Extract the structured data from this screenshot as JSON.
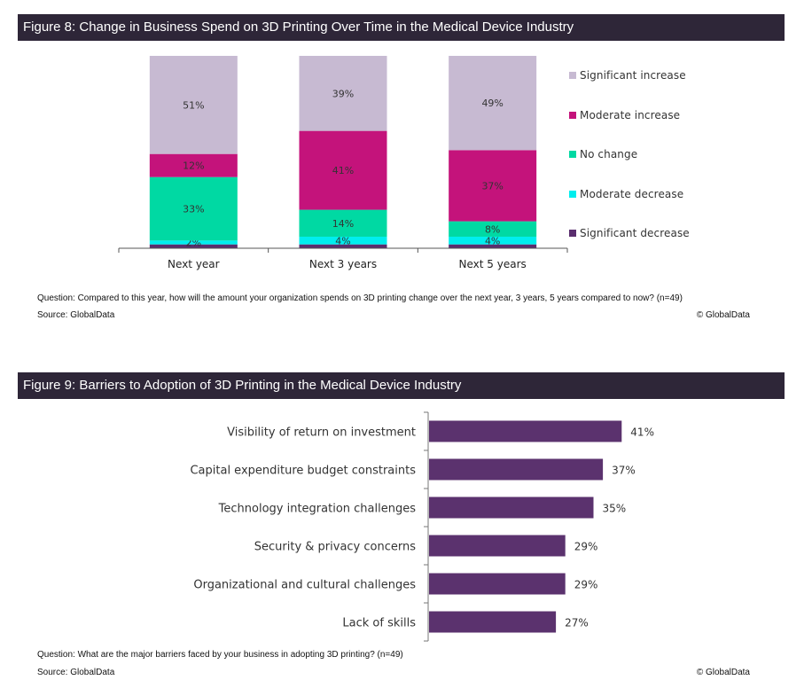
{
  "figure8": {
    "title": "Figure 8: Change in Business Spend on 3D Printing Over Time in the Medical Device Industry",
    "question": "Question: Compared to this year, how will the amount your organization spends on 3D printing change over the next year, 3 years, 5 years compared to now?  (n=49)",
    "source": "Source: GlobalData",
    "copyright": "© GlobalData"
  },
  "figure9": {
    "title": "Figure 9: Barriers to Adoption of 3D Printing in the Medical Device Industry",
    "question": "Question: What are the major barriers faced by your business in adopting 3D printing? (n=49)",
    "source": "Source: GlobalData",
    "copyright": "© GlobalData"
  },
  "chart_data": [
    {
      "type": "bar",
      "stacked": true,
      "orientation": "vertical",
      "title": "Figure 8: Change in Business Spend on 3D Printing Over Time in the Medical Device Industry",
      "xlabel": "",
      "ylabel": "",
      "ylim": [
        0,
        100
      ],
      "grid": false,
      "legend_position": "right",
      "categories": [
        "Next year",
        "Next 3 years",
        "Next 5 years"
      ],
      "series": [
        {
          "name": "Significant decrease",
          "color": "#5a2d6e",
          "values": [
            2,
            2,
            2
          ],
          "labels": [
            "",
            "",
            ""
          ]
        },
        {
          "name": "Moderate decrease",
          "color": "#00eeee",
          "values": [
            2,
            4,
            4
          ],
          "labels": [
            "2%",
            "4%",
            "4%"
          ]
        },
        {
          "name": "No change",
          "color": "#00d9a3",
          "values": [
            33,
            14,
            8
          ],
          "labels": [
            "33%",
            "14%",
            "8%"
          ]
        },
        {
          "name": "Moderate increase",
          "color": "#c4137b",
          "values": [
            12,
            41,
            37
          ],
          "labels": [
            "12%",
            "41%",
            "37%"
          ]
        },
        {
          "name": "Significant increase",
          "color": "#c7bad2",
          "values": [
            51,
            39,
            49
          ],
          "labels": [
            "51%",
            "39%",
            "49%"
          ]
        }
      ],
      "legend_order": [
        "Significant increase",
        "Moderate increase",
        "No change",
        "Moderate decrease",
        "Significant decrease"
      ]
    },
    {
      "type": "bar",
      "orientation": "horizontal",
      "title": "Figure 9: Barriers to Adoption of 3D Printing in the Medical Device Industry",
      "xlabel": "",
      "ylabel": "",
      "xlim": [
        0,
        45
      ],
      "grid": false,
      "color": "#5b326e",
      "categories": [
        "Visibility of return on investment",
        "Capital expenditure budget constraints",
        "Technology integration challenges",
        "Security & privacy concerns",
        "Organizational and cultural challenges",
        "Lack of skills"
      ],
      "values": [
        41,
        37,
        35,
        29,
        29,
        27
      ],
      "labels": [
        "41%",
        "37%",
        "35%",
        "29%",
        "29%",
        "27%"
      ]
    }
  ]
}
